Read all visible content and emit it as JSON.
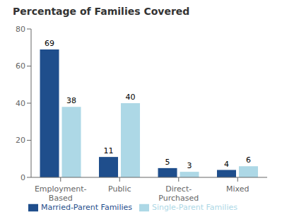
{
  "chart_data": {
    "type": "bar",
    "title": "Percentage of Families Covered",
    "categories": [
      "Employment-\nBased",
      "Public",
      "Direct-\nPurchased",
      "Mixed"
    ],
    "series": [
      {
        "name": "Married-Parent Families",
        "color": "#1F4E8C",
        "values": [
          69,
          11,
          5,
          4
        ]
      },
      {
        "name": "Single-Parent Families",
        "color": "#ADD8E6",
        "values": [
          38,
          40,
          3,
          6
        ]
      }
    ],
    "ylim": [
      0,
      80
    ],
    "yticks": [
      0,
      20,
      40,
      60,
      80
    ],
    "data_labels": true,
    "legend": "bottom",
    "grid": false
  }
}
